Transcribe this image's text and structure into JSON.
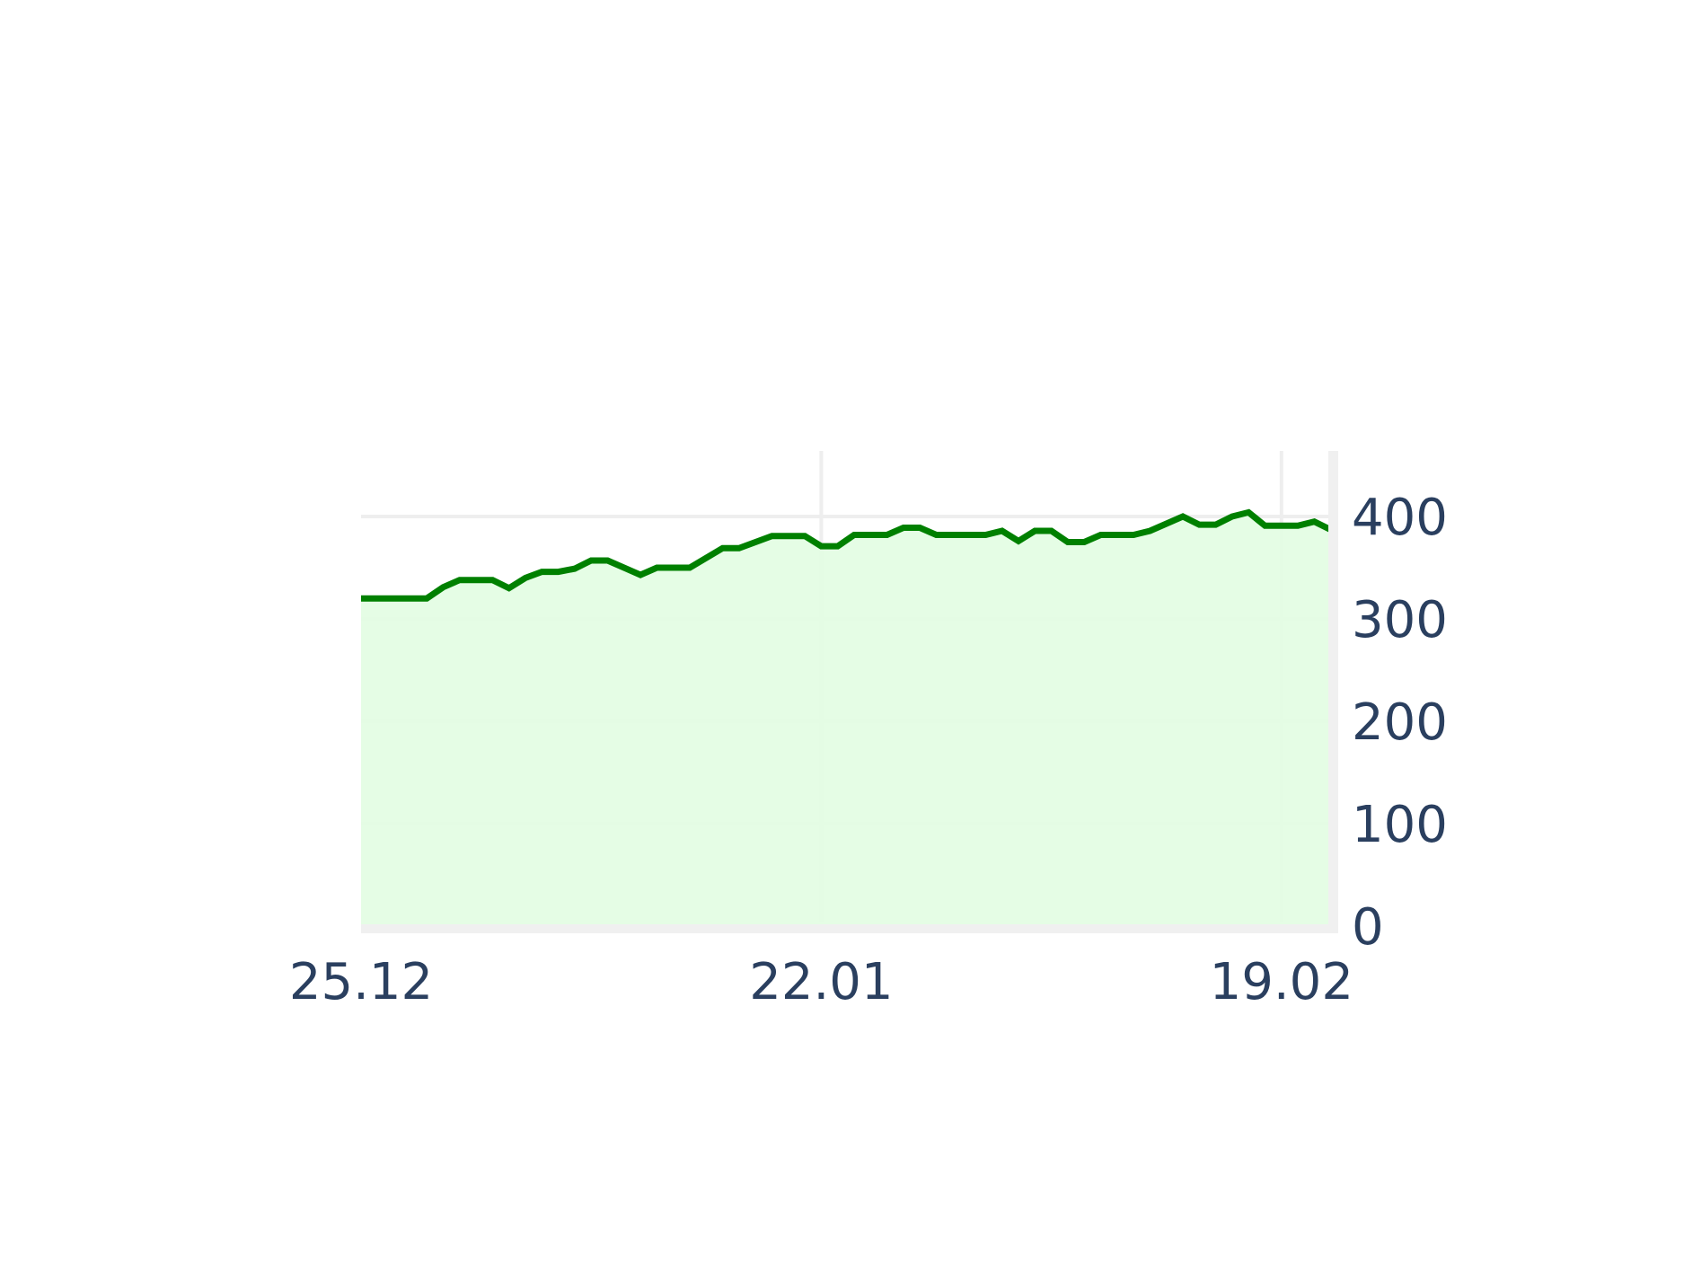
{
  "chart_data": {
    "type": "area",
    "title": "",
    "xlabel": "",
    "ylabel": "",
    "x_ticks": [
      "25.12",
      "22.01",
      "19.02"
    ],
    "y_ticks": [
      0,
      100,
      200,
      300,
      400
    ],
    "ylim": [
      0,
      465
    ],
    "xlim": [
      0,
      59.5
    ],
    "grid": true,
    "y_axis_side": "right",
    "colors": {
      "line": "#008000",
      "fill": "#e2fde2",
      "grid": "#eeeeee",
      "text": "#2a3f5f"
    },
    "values": [
      [
        0,
        320
      ],
      [
        4,
        320
      ],
      [
        5,
        331
      ],
      [
        6,
        338
      ],
      [
        8,
        338
      ],
      [
        9,
        330
      ],
      [
        10,
        340
      ],
      [
        11,
        346
      ],
      [
        12,
        346
      ],
      [
        13,
        349
      ],
      [
        14,
        357
      ],
      [
        15,
        357
      ],
      [
        17,
        343
      ],
      [
        18,
        350
      ],
      [
        20,
        350
      ],
      [
        22,
        369
      ],
      [
        23,
        369
      ],
      [
        25,
        381
      ],
      [
        27,
        381
      ],
      [
        28,
        371
      ],
      [
        29,
        371
      ],
      [
        30,
        382
      ],
      [
        32,
        382
      ],
      [
        33,
        389
      ],
      [
        34,
        389
      ],
      [
        35,
        382
      ],
      [
        38,
        382
      ],
      [
        39,
        386
      ],
      [
        40,
        376
      ],
      [
        41,
        386
      ],
      [
        42,
        386
      ],
      [
        43,
        375
      ],
      [
        44,
        375
      ],
      [
        45,
        382
      ],
      [
        47,
        382
      ],
      [
        48,
        386
      ],
      [
        50,
        400
      ],
      [
        51,
        392
      ],
      [
        52,
        392
      ],
      [
        53,
        400
      ],
      [
        54,
        404
      ],
      [
        55,
        391
      ],
      [
        57,
        391
      ],
      [
        58,
        395
      ],
      [
        59,
        387
      ]
    ]
  }
}
